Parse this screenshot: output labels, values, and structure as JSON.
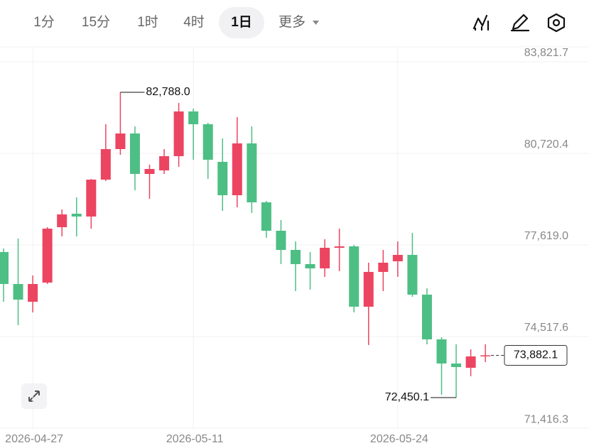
{
  "toolbar": {
    "tabs": [
      "1分",
      "15分",
      "1时",
      "4时",
      "1日"
    ],
    "more": "更多"
  },
  "chart_data": {
    "type": "candlestick",
    "categories": [
      null,
      null,
      "2026-04-27",
      null,
      null,
      null,
      null,
      null,
      null,
      null,
      null,
      null,
      null,
      "2026-05-11",
      null,
      null,
      null,
      null,
      null,
      null,
      null,
      null,
      null,
      null,
      null,
      null,
      null,
      "2026-05-24",
      null,
      null,
      null,
      null,
      null,
      null
    ],
    "open": [
      77379,
      76297,
      75696,
      76345,
      78220,
      78677,
      78581,
      79831,
      80865,
      81393,
      80023,
      80143,
      80624,
      82139,
      81706,
      80432,
      79302,
      81057,
      79062,
      78100,
      77451,
      76970,
      76826,
      77523,
      77571,
      75528,
      76706,
      77066,
      77283,
      75936,
      74422,
      73605,
      73460,
      73869
    ],
    "high": [
      77499,
      77836,
      76586,
      78220,
      78821,
      79230,
      79850,
      81706,
      82788.0,
      81634,
      80336,
      80865,
      82427,
      82235,
      81754,
      81225,
      81946,
      81634,
      79110,
      78461,
      77739,
      77379,
      77812,
      78172,
      77619,
      77018,
      77451,
      77739,
      78028,
      76153,
      74494,
      74254,
      74085,
      74254
    ],
    "low": [
      75696,
      74903,
      75336,
      76297,
      77908,
      77908,
      78172,
      79783,
      80672,
      79470,
      79182,
      80023,
      80264,
      80504,
      79855,
      78773,
      78893,
      78701,
      77860,
      76970,
      76057,
      76105,
      76537,
      76730,
      75336,
      74230,
      76057,
      76537,
      75864,
      74254,
      72547,
      72450.1,
      73172,
      73653
    ],
    "close": [
      76297,
      75768,
      76297,
      78172,
      78653,
      78581,
      79831,
      80865,
      81393,
      80023,
      80192,
      80624,
      82139,
      81706,
      80504,
      79302,
      81057,
      79062,
      78100,
      77451,
      76970,
      76826,
      77523,
      77571,
      75528,
      76706,
      77018,
      77283,
      75936,
      74422,
      73605,
      73484,
      73845,
      73882.1
    ],
    "up_color": "#ec4561",
    "down_color": "#4dbf84",
    "ylim": [
      71369,
      84326
    ],
    "yticks": [
      {
        "value": 83821.7,
        "label": "83,821.7"
      },
      {
        "value": 80720.4,
        "label": "80,720.4"
      },
      {
        "value": 77619.0,
        "label": "77,619.0"
      },
      {
        "value": 74517.6,
        "label": "74,517.6"
      },
      {
        "value": 71416.3,
        "label": "71,416.3"
      }
    ],
    "grid": true,
    "annotations": [
      {
        "label": "82,788.0",
        "value": 82788.0
      },
      {
        "label": "72,450.1",
        "value": 72450.1
      }
    ],
    "last_price": {
      "value": 73882.1,
      "label": "73,882.1"
    }
  }
}
